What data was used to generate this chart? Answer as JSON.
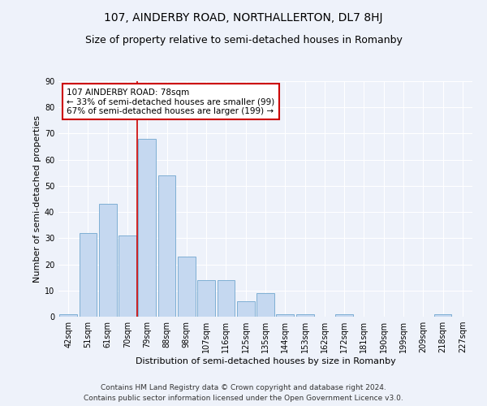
{
  "title1": "107, AINDERBY ROAD, NORTHALLERTON, DL7 8HJ",
  "title2": "Size of property relative to semi-detached houses in Romanby",
  "xlabel": "Distribution of semi-detached houses by size in Romanby",
  "ylabel": "Number of semi-detached properties",
  "categories": [
    "42sqm",
    "51sqm",
    "61sqm",
    "70sqm",
    "79sqm",
    "88sqm",
    "98sqm",
    "107sqm",
    "116sqm",
    "125sqm",
    "135sqm",
    "144sqm",
    "153sqm",
    "162sqm",
    "172sqm",
    "181sqm",
    "190sqm",
    "199sqm",
    "209sqm",
    "218sqm",
    "227sqm"
  ],
  "values": [
    1,
    32,
    43,
    31,
    68,
    54,
    23,
    14,
    14,
    6,
    9,
    1,
    1,
    0,
    1,
    0,
    0,
    0,
    0,
    1,
    0
  ],
  "bar_color": "#c5d8f0",
  "bar_edge_color": "#7fafd4",
  "annotation_text": "107 AINDERBY ROAD: 78sqm\n← 33% of semi-detached houses are smaller (99)\n67% of semi-detached houses are larger (199) →",
  "annotation_box_color": "white",
  "annotation_box_edge_color": "#cc0000",
  "vline_color": "#cc0000",
  "vline_x": 3.5,
  "ylim": [
    0,
    90
  ],
  "yticks": [
    0,
    10,
    20,
    30,
    40,
    50,
    60,
    70,
    80,
    90
  ],
  "footer1": "Contains HM Land Registry data © Crown copyright and database right 2024.",
  "footer2": "Contains public sector information licensed under the Open Government Licence v3.0.",
  "background_color": "#eef2fa",
  "grid_color": "white",
  "title1_fontsize": 10,
  "title2_fontsize": 9,
  "axis_label_fontsize": 8,
  "tick_fontsize": 7,
  "annotation_fontsize": 7.5,
  "footer_fontsize": 6.5
}
